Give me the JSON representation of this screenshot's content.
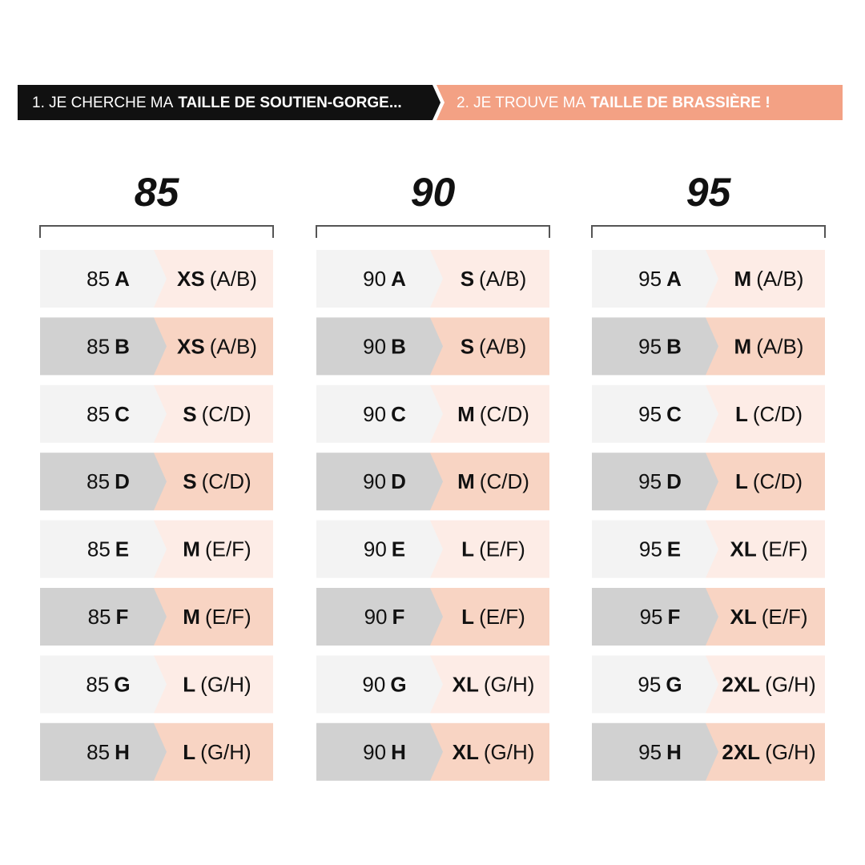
{
  "header": {
    "steps": [
      {
        "prefix": "1. JE CHERCHE MA",
        "emphasis": "TAILLE DE SOUTIEN-GORGE..."
      },
      {
        "prefix": "2. JE TROUVE MA",
        "emphasis": "TAILLE DE BRASSIÈRE !"
      }
    ]
  },
  "columns": [
    {
      "band": "85",
      "rows": [
        {
          "band": "85",
          "cup": "A",
          "size": "XS",
          "range": "(A/B)"
        },
        {
          "band": "85",
          "cup": "B",
          "size": "XS",
          "range": "(A/B)"
        },
        {
          "band": "85",
          "cup": "C",
          "size": "S",
          "range": "(C/D)"
        },
        {
          "band": "85",
          "cup": "D",
          "size": "S",
          "range": "(C/D)"
        },
        {
          "band": "85",
          "cup": "E",
          "size": "M",
          "range": "(E/F)"
        },
        {
          "band": "85",
          "cup": "F",
          "size": "M",
          "range": "(E/F)"
        },
        {
          "band": "85",
          "cup": "G",
          "size": "L",
          "range": "(G/H)"
        },
        {
          "band": "85",
          "cup": "H",
          "size": "L",
          "range": "(G/H)"
        }
      ]
    },
    {
      "band": "90",
      "rows": [
        {
          "band": "90",
          "cup": "A",
          "size": "S",
          "range": "(A/B)"
        },
        {
          "band": "90",
          "cup": "B",
          "size": "S",
          "range": "(A/B)"
        },
        {
          "band": "90",
          "cup": "C",
          "size": "M",
          "range": "(C/D)"
        },
        {
          "band": "90",
          "cup": "D",
          "size": "M",
          "range": "(C/D)"
        },
        {
          "band": "90",
          "cup": "E",
          "size": "L",
          "range": "(E/F)"
        },
        {
          "band": "90",
          "cup": "F",
          "size": "L",
          "range": "(E/F)"
        },
        {
          "band": "90",
          "cup": "G",
          "size": "XL",
          "range": "(G/H)"
        },
        {
          "band": "90",
          "cup": "H",
          "size": "XL",
          "range": "(G/H)"
        }
      ]
    },
    {
      "band": "95",
      "rows": [
        {
          "band": "95",
          "cup": "A",
          "size": "M",
          "range": "(A/B)"
        },
        {
          "band": "95",
          "cup": "B",
          "size": "M",
          "range": "(A/B)"
        },
        {
          "band": "95",
          "cup": "C",
          "size": "L",
          "range": "(C/D)"
        },
        {
          "band": "95",
          "cup": "D",
          "size": "L",
          "range": "(C/D)"
        },
        {
          "band": "95",
          "cup": "E",
          "size": "XL",
          "range": "(E/F)"
        },
        {
          "band": "95",
          "cup": "F",
          "size": "XL",
          "range": "(E/F)"
        },
        {
          "band": "95",
          "cup": "G",
          "size": "2XL",
          "range": "(G/H)"
        },
        {
          "band": "95",
          "cup": "H",
          "size": "2XL",
          "range": "(G/H)"
        }
      ]
    }
  ]
}
